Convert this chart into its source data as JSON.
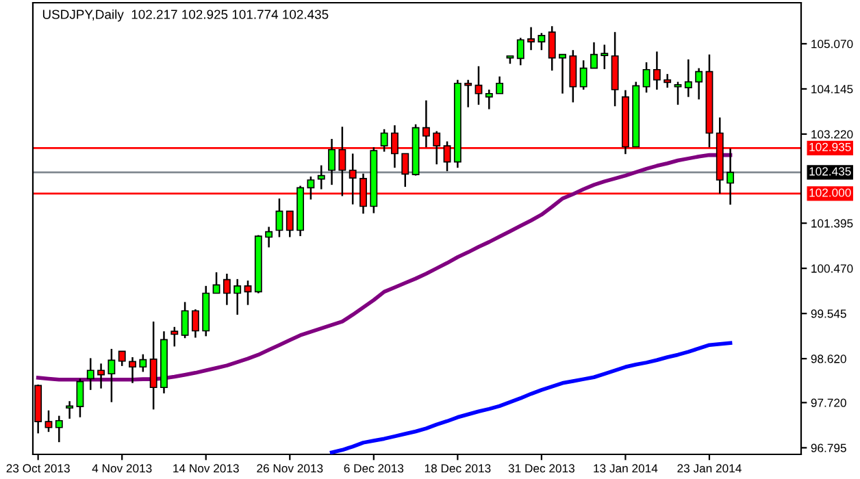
{
  "chart_data": {
    "type": "candlestick",
    "title": "USDJPY,Daily  102.217 102.925 101.774 102.435",
    "categories": [
      "23 Oct 2013",
      null,
      null,
      null,
      null,
      null,
      null,
      null,
      "4 Nov 2013",
      null,
      null,
      null,
      null,
      null,
      null,
      null,
      "14 Nov 2013",
      null,
      null,
      null,
      null,
      null,
      null,
      null,
      "26 Nov 2013",
      null,
      null,
      null,
      null,
      null,
      null,
      null,
      "6 Dec 2013",
      null,
      null,
      null,
      null,
      null,
      null,
      null,
      "18 Dec 2013",
      null,
      null,
      null,
      null,
      null,
      null,
      null,
      "31 Dec 2013",
      null,
      null,
      null,
      null,
      null,
      null,
      null,
      "13 Jan 2014",
      null,
      null,
      null,
      null,
      null,
      null,
      null,
      "23 Jan 2014",
      null,
      null
    ],
    "ohlc": [
      [
        98.07,
        98.09,
        97.09,
        97.33
      ],
      [
        97.33,
        97.56,
        97.12,
        97.21
      ],
      [
        97.21,
        97.45,
        96.91,
        97.35
      ],
      [
        97.61,
        97.75,
        97.39,
        97.64
      ],
      [
        97.64,
        98.21,
        97.42,
        98.15
      ],
      [
        98.21,
        98.63,
        97.98,
        98.38
      ],
      [
        98.38,
        98.52,
        98.01,
        98.29
      ],
      [
        98.31,
        98.82,
        97.73,
        98.59
      ],
      [
        98.77,
        98.77,
        98.47,
        98.57
      ],
      [
        98.56,
        98.65,
        98.12,
        98.45
      ],
      [
        98.45,
        98.71,
        98.35,
        98.6
      ],
      [
        98.61,
        99.38,
        97.58,
        98.03
      ],
      [
        98.03,
        99.18,
        97.91,
        99.01
      ],
      [
        99.18,
        99.27,
        98.87,
        99.12
      ],
      [
        99.1,
        99.78,
        99.04,
        99.6
      ],
      [
        99.6,
        99.63,
        99.05,
        99.19
      ],
      [
        99.19,
        100.11,
        99.08,
        99.96
      ],
      [
        99.96,
        100.39,
        99.96,
        100.13
      ],
      [
        100.24,
        100.36,
        99.72,
        99.96
      ],
      [
        99.96,
        100.25,
        99.52,
        100.11
      ],
      [
        100.11,
        100.22,
        99.72,
        99.99
      ],
      [
        99.99,
        101.15,
        99.96,
        101.13
      ],
      [
        101.11,
        101.32,
        100.9,
        101.22
      ],
      [
        101.25,
        101.9,
        101.11,
        101.64
      ],
      [
        101.64,
        101.64,
        101.11,
        101.25
      ],
      [
        101.25,
        102.16,
        101.13,
        102.12
      ],
      [
        102.12,
        102.35,
        101.88,
        102.28
      ],
      [
        102.3,
        102.58,
        102.09,
        102.37
      ],
      [
        102.48,
        103.12,
        102.18,
        102.9
      ],
      [
        102.9,
        103.37,
        101.95,
        102.48
      ],
      [
        102.48,
        102.82,
        101.78,
        102.32
      ],
      [
        102.31,
        102.41,
        101.59,
        101.74
      ],
      [
        101.74,
        102.95,
        101.6,
        102.88
      ],
      [
        102.98,
        103.32,
        102.86,
        103.24
      ],
      [
        103.24,
        103.4,
        102.53,
        102.82
      ],
      [
        102.82,
        102.82,
        102.14,
        102.4
      ],
      [
        102.39,
        103.42,
        102.37,
        103.35
      ],
      [
        103.35,
        103.91,
        102.95,
        103.18
      ],
      [
        103.24,
        103.28,
        102.6,
        102.98
      ],
      [
        102.98,
        103.07,
        102.46,
        102.65
      ],
      [
        102.65,
        104.33,
        102.53,
        104.26
      ],
      [
        104.26,
        104.33,
        103.77,
        104.22
      ],
      [
        104.22,
        104.61,
        103.82,
        104.05
      ],
      [
        103.98,
        104.13,
        103.73,
        104.05
      ],
      [
        104.05,
        104.4,
        104.05,
        104.26
      ],
      [
        104.78,
        104.83,
        104.66,
        104.79
      ],
      [
        104.77,
        105.19,
        104.63,
        105.15
      ],
      [
        105.17,
        105.41,
        104.94,
        105.11
      ],
      [
        105.11,
        105.29,
        104.94,
        105.24
      ],
      [
        105.31,
        105.43,
        104.52,
        104.78
      ],
      [
        104.78,
        104.85,
        104.05,
        104.85
      ],
      [
        104.82,
        104.94,
        103.87,
        104.19
      ],
      [
        104.19,
        104.73,
        104.13,
        104.57
      ],
      [
        104.57,
        105.1,
        104.57,
        104.85
      ],
      [
        104.83,
        105.05,
        104.55,
        104.85
      ],
      [
        104.82,
        105.31,
        103.79,
        104.13
      ],
      [
        103.98,
        104.12,
        102.81,
        102.96
      ],
      [
        102.96,
        104.29,
        102.96,
        104.21
      ],
      [
        104.19,
        104.69,
        104.07,
        104.54
      ],
      [
        104.54,
        104.91,
        104.13,
        104.33
      ],
      [
        104.33,
        104.45,
        104.17,
        104.28
      ],
      [
        104.19,
        104.29,
        103.82,
        104.2
      ],
      [
        104.17,
        104.75,
        103.98,
        104.29
      ],
      [
        104.29,
        104.57,
        103.93,
        104.5
      ],
      [
        104.5,
        104.85,
        102.95,
        103.24
      ],
      [
        103.24,
        103.56,
        102.0,
        102.28
      ],
      [
        102.217,
        102.925,
        101.774,
        102.435
      ]
    ],
    "colors": [
      "#ff0000",
      "#ff0000",
      "#00ff00",
      "#00ff00",
      "#00ff00",
      "#00ff00",
      "#ff0000",
      "#00ff00",
      "#ff0000",
      "#ff0000",
      "#00ff00",
      "#ff0000",
      "#00ff00",
      "#ff0000",
      "#00ff00",
      "#ff0000",
      "#00ff00",
      "#00ff00",
      "#ff0000",
      "#00ff00",
      "#ff0000",
      "#00ff00",
      "#00ff00",
      "#00ff00",
      "#ff0000",
      "#00ff00",
      "#00ff00",
      "#00ff00",
      "#00ff00",
      "#ff0000",
      "#ff0000",
      "#ff0000",
      "#00ff00",
      "#00ff00",
      "#ff0000",
      "#ff0000",
      "#00ff00",
      "#ff0000",
      "#ff0000",
      "#ff0000",
      "#00ff00",
      "#ff0000",
      "#ff0000",
      "#00ff00",
      "#00ff00",
      "#00ff00",
      "#00ff00",
      "#ff0000",
      "#00ff00",
      "#ff0000",
      "#00ff00",
      "#ff0000",
      "#00ff00",
      "#00ff00",
      "#00ff00",
      "#ff0000",
      "#ff0000",
      "#00ff00",
      "#00ff00",
      "#ff0000",
      "#ff0000",
      "#00ff00",
      "#00ff00",
      "#00ff00",
      "#ff0000",
      "#ff0000",
      "#00ff00"
    ],
    "series": [
      {
        "type": "line",
        "color": "#800080",
        "values": [
          98.23,
          98.21,
          98.19,
          98.19,
          98.19,
          98.19,
          98.19,
          98.19,
          98.19,
          98.19,
          98.2,
          98.2,
          98.22,
          98.25,
          98.29,
          98.33,
          98.38,
          98.43,
          98.48,
          98.55,
          98.62,
          98.7,
          98.8,
          98.9,
          99.0,
          99.1,
          99.17,
          99.24,
          99.31,
          99.38,
          99.52,
          99.67,
          99.82,
          99.99,
          100.08,
          100.17,
          100.26,
          100.36,
          100.47,
          100.58,
          100.7,
          100.8,
          100.91,
          101.01,
          101.12,
          101.23,
          101.34,
          101.45,
          101.57,
          101.73,
          101.9,
          101.99,
          102.09,
          102.18,
          102.25,
          102.31,
          102.37,
          102.44,
          102.51,
          102.57,
          102.62,
          102.68,
          102.72,
          102.76,
          102.79,
          102.79,
          102.79
        ]
      },
      {
        "type": "line",
        "color": "#0000ff",
        "values": [
          null,
          null,
          null,
          null,
          null,
          null,
          null,
          null,
          null,
          null,
          null,
          null,
          null,
          null,
          null,
          null,
          null,
          null,
          null,
          null,
          null,
          null,
          null,
          null,
          null,
          null,
          null,
          null,
          96.7,
          96.75,
          96.82,
          96.9,
          96.94,
          96.98,
          97.03,
          97.08,
          97.13,
          97.19,
          97.27,
          97.34,
          97.42,
          97.48,
          97.54,
          97.59,
          97.65,
          97.73,
          97.81,
          97.9,
          97.98,
          98.05,
          98.12,
          98.16,
          98.2,
          98.24,
          98.31,
          98.38,
          98.45,
          98.5,
          98.54,
          98.59,
          98.65,
          98.7,
          98.76,
          98.83,
          98.9,
          98.92,
          98.94
        ]
      }
    ],
    "ref_lines": [
      {
        "axis": "y",
        "value": 102.935,
        "label": "102.935",
        "color": "#ff0000"
      },
      {
        "axis": "y",
        "value": 102.435,
        "label": "102.435",
        "color": "#808890"
      },
      {
        "axis": "y",
        "value": 102.0,
        "label": "102.000",
        "color": "#ff0000"
      }
    ],
    "ylim": [
      96.66,
      105.91
    ],
    "yticks": [
      {
        "value": 105.07,
        "label": "105.070"
      },
      {
        "value": 104.145,
        "label": "104.145"
      },
      {
        "value": 103.22,
        "label": "103.220"
      },
      {
        "value": 101.395,
        "label": "101.395"
      },
      {
        "value": 100.47,
        "label": "100.470"
      },
      {
        "value": 99.545,
        "label": "99.545"
      },
      {
        "value": 98.62,
        "label": "98.620"
      },
      {
        "value": 97.72,
        "label": "97.720"
      },
      {
        "value": 96.795,
        "label": "96.795"
      }
    ]
  }
}
